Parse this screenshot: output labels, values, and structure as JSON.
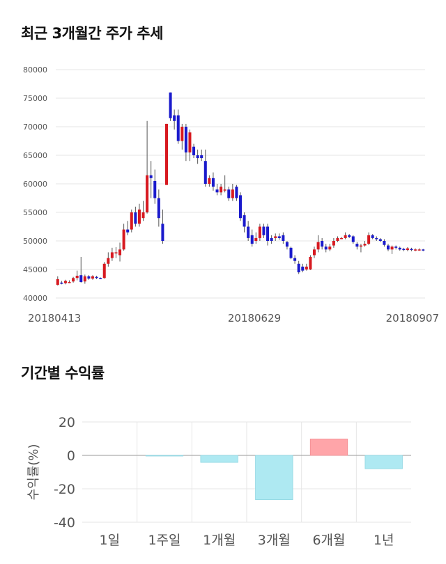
{
  "sections": {
    "price_title": "최근 3개월간 주가 추세",
    "returns_title": "기간별 수익률"
  },
  "colors": {
    "up": "#d71920",
    "down": "#1a1acc",
    "wick": "#555555",
    "positive_bar": "#ffa5a9",
    "negative_bar": "#aee9f2",
    "grid": "#e6e6e6"
  },
  "chart_data": [
    {
      "type": "candlestick",
      "title": "최근 3개월간 주가 추세",
      "ylim": [
        40000,
        80000
      ],
      "y_ticks": [
        40000,
        45000,
        50000,
        55000,
        60000,
        65000,
        70000,
        75000,
        80000
      ],
      "x_tick_labels": [
        "20180413",
        "20180629",
        "20180907"
      ],
      "grid": true,
      "candles": [
        [
          42300,
          43300,
          42200,
          43800
        ],
        [
          42700,
          42500,
          42400,
          43000
        ],
        [
          42600,
          43000,
          42400,
          43200
        ],
        [
          42800,
          42800,
          42600,
          43100
        ],
        [
          42900,
          43500,
          42700,
          43700
        ],
        [
          43500,
          43900,
          43100,
          44800
        ],
        [
          44000,
          42800,
          42700,
          47200
        ],
        [
          42900,
          43800,
          42500,
          44100
        ],
        [
          43800,
          43400,
          43200,
          44000
        ],
        [
          43400,
          43800,
          43200,
          44000
        ],
        [
          43700,
          43500,
          43300,
          43900
        ],
        [
          43500,
          43400,
          43300,
          43600
        ],
        [
          43500,
          46000,
          43400,
          46300
        ],
        [
          46000,
          47000,
          45500,
          48000
        ],
        [
          47000,
          48000,
          46500,
          48800
        ],
        [
          48000,
          48000,
          47000,
          48900
        ],
        [
          47500,
          48500,
          46400,
          49700
        ],
        [
          48500,
          52000,
          48300,
          53000
        ],
        [
          52000,
          51500,
          51000,
          53500
        ],
        [
          52000,
          55000,
          51500,
          55500
        ],
        [
          55000,
          53000,
          52500,
          56000
        ],
        [
          53000,
          55500,
          52500,
          56500
        ],
        [
          54000,
          55000,
          53500,
          57000
        ],
        [
          55000,
          61500,
          54800,
          71000
        ],
        [
          61500,
          61000,
          57500,
          64000
        ],
        [
          60500,
          57500,
          56500,
          62500
        ],
        [
          57500,
          54000,
          52500,
          59000
        ],
        [
          53000,
          50000,
          49500,
          55500
        ],
        [
          59800,
          70500,
          59800,
          70500
        ],
        [
          76000,
          71500,
          71000,
          76000
        ],
        [
          72000,
          71000,
          69500,
          73000
        ],
        [
          72000,
          67500,
          67000,
          73000
        ],
        [
          67500,
          70000,
          66000,
          70500
        ],
        [
          70000,
          65500,
          64000,
          70500
        ],
        [
          65500,
          69000,
          64000,
          69500
        ],
        [
          66500,
          65000,
          64500,
          67000
        ],
        [
          65000,
          64500,
          63500,
          66000
        ],
        [
          65000,
          64500,
          64000,
          66000
        ],
        [
          64000,
          60000,
          59500,
          66000
        ],
        [
          60000,
          61000,
          59500,
          61500
        ],
        [
          61000,
          59500,
          58800,
          62000
        ],
        [
          59000,
          58500,
          58000,
          60000
        ],
        [
          58500,
          59500,
          58000,
          60000
        ],
        [
          59000,
          59000,
          58500,
          61500
        ],
        [
          59000,
          57500,
          57000,
          59500
        ],
        [
          57500,
          59000,
          57000,
          60000
        ],
        [
          59500,
          57500,
          57000,
          59800
        ],
        [
          58000,
          54000,
          53500,
          58500
        ],
        [
          54500,
          52500,
          51500,
          55000
        ],
        [
          52500,
          50500,
          50000,
          53500
        ],
        [
          51000,
          49500,
          49000,
          52000
        ],
        [
          50000,
          50500,
          49500,
          51500
        ],
        [
          50500,
          52500,
          50000,
          53000
        ],
        [
          52500,
          51000,
          50500,
          53000
        ],
        [
          52500,
          50000,
          49200,
          53000
        ],
        [
          50500,
          50000,
          49500,
          51000
        ],
        [
          50500,
          50800,
          50000,
          51300
        ],
        [
          50800,
          50500,
          50200,
          51300
        ],
        [
          51000,
          50000,
          49500,
          51500
        ],
        [
          49800,
          49000,
          48500,
          50000
        ],
        [
          48800,
          47000,
          46800,
          49000
        ],
        [
          47000,
          46500,
          46000,
          47500
        ],
        [
          46000,
          44500,
          44200,
          46500
        ],
        [
          45500,
          44800,
          44500,
          46000
        ],
        [
          45000,
          45500,
          44800,
          46000
        ],
        [
          45000,
          47200,
          44900,
          47500
        ],
        [
          47500,
          48500,
          47000,
          49000
        ],
        [
          48500,
          49800,
          48000,
          51000
        ],
        [
          50000,
          49000,
          48500,
          50500
        ],
        [
          49000,
          48500,
          48000,
          49500
        ],
        [
          48500,
          49000,
          48200,
          49500
        ],
        [
          49200,
          50000,
          48800,
          50500
        ],
        [
          50000,
          50500,
          49800,
          50800
        ],
        [
          50500,
          50500,
          50300,
          50700
        ],
        [
          50500,
          51000,
          50300,
          51500
        ],
        [
          51000,
          50700,
          50500,
          51200
        ],
        [
          50800,
          49800,
          49500,
          51000
        ],
        [
          49500,
          49000,
          48500,
          49800
        ],
        [
          49000,
          49200,
          48000,
          49500
        ],
        [
          49200,
          49500,
          49000,
          50000
        ],
        [
          49500,
          51000,
          49300,
          51500
        ],
        [
          51000,
          50500,
          50300,
          51200
        ],
        [
          50500,
          50300,
          50000,
          50800
        ],
        [
          50300,
          50000,
          49800,
          50500
        ],
        [
          50000,
          49300,
          49000,
          50300
        ],
        [
          49200,
          48500,
          48200,
          49500
        ],
        [
          48500,
          49000,
          47700,
          49200
        ],
        [
          49000,
          48800,
          48500,
          49200
        ],
        [
          48800,
          48500,
          48300,
          49000
        ],
        [
          48600,
          48400,
          48200,
          48800
        ],
        [
          48400,
          48700,
          48200,
          48900
        ],
        [
          48600,
          48400,
          48200,
          48800
        ],
        [
          48400,
          48500,
          48200,
          48700
        ],
        [
          48500,
          48500,
          48300,
          48700
        ],
        [
          48500,
          48400,
          48200,
          48600
        ]
      ]
    },
    {
      "type": "bar",
      "title": "기간별 수익률",
      "ylabel": "수익률(%)",
      "categories": [
        "1일",
        "1주일",
        "1개월",
        "3개월",
        "6개월",
        "1년"
      ],
      "values": [
        0,
        -0.2,
        -4.2,
        -26.5,
        9.8,
        -8.0
      ],
      "ylim": [
        -40,
        20
      ],
      "y_ticks": [
        20,
        0,
        -20,
        -40
      ],
      "grid": true
    }
  ]
}
